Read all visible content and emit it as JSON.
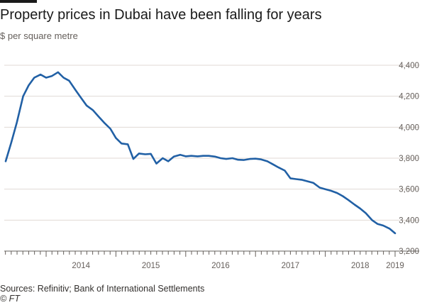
{
  "title": "Property prices in Dubai have been falling for years",
  "subtitle": "$ per square metre",
  "source": "Sources: Refinitiv; Bank of International Settlements",
  "credit": "© FT",
  "colors": {
    "line": "#2160a5",
    "grid": "#e0dad4",
    "axis": "#66605c"
  },
  "chart_data": {
    "type": "line",
    "title": "Property prices in Dubai have been falling for years",
    "ylabel": "$ per square metre",
    "xlabel": "",
    "ylim": [
      3200,
      4400
    ],
    "xlim": [
      2013.4,
      2019.0
    ],
    "yticks": [
      3200,
      3400,
      3600,
      3800,
      4000,
      4200,
      4400
    ],
    "ytick_labels": [
      "3,200",
      "3,400",
      "3,600",
      "3,800",
      "4,000",
      "4,200",
      "4,400"
    ],
    "xticks": [
      2014,
      2015,
      2016,
      2017,
      2018,
      2019
    ],
    "xtick_labels": [
      "2014",
      "2015",
      "2016",
      "2017",
      "2018",
      "2019"
    ],
    "grid": true,
    "y_axis_side": "right",
    "series": [
      {
        "x": [
          2013.42,
          2013.5,
          2013.58,
          2013.67,
          2013.75,
          2013.83,
          2013.92,
          2014.0,
          2014.08,
          2014.17,
          2014.25,
          2014.33,
          2014.42,
          2014.5,
          2014.58,
          2014.67,
          2014.75,
          2014.83,
          2014.92,
          2015.0,
          2015.08,
          2015.17,
          2015.25,
          2015.33,
          2015.42,
          2015.5,
          2015.58,
          2015.67,
          2015.75,
          2015.83,
          2015.92,
          2016.0,
          2016.08,
          2016.17,
          2016.25,
          2016.33,
          2016.42,
          2016.5,
          2016.58,
          2016.67,
          2016.75,
          2016.83,
          2016.92,
          2017.0,
          2017.08,
          2017.17,
          2017.25,
          2017.33,
          2017.42,
          2017.5,
          2017.58,
          2017.67,
          2017.75,
          2017.83,
          2017.92,
          2018.0,
          2018.08,
          2018.17,
          2018.25,
          2018.33,
          2018.42,
          2018.5,
          2018.58,
          2018.67,
          2018.75,
          2018.83,
          2018.92,
          2019.0
        ],
        "values": [
          3780,
          3900,
          4030,
          4200,
          4270,
          4320,
          4340,
          4320,
          4330,
          4355,
          4320,
          4300,
          4240,
          4190,
          4140,
          4110,
          4070,
          4030,
          3990,
          3930,
          3895,
          3890,
          3795,
          3830,
          3825,
          3828,
          3765,
          3800,
          3780,
          3810,
          3822,
          3812,
          3815,
          3812,
          3815,
          3815,
          3810,
          3800,
          3795,
          3800,
          3790,
          3788,
          3795,
          3797,
          3792,
          3780,
          3760,
          3740,
          3720,
          3670,
          3665,
          3660,
          3650,
          3640,
          3610,
          3600,
          3590,
          3575,
          3555,
          3530,
          3500,
          3475,
          3445,
          3400,
          3375,
          3365,
          3345,
          3315
        ]
      }
    ]
  }
}
